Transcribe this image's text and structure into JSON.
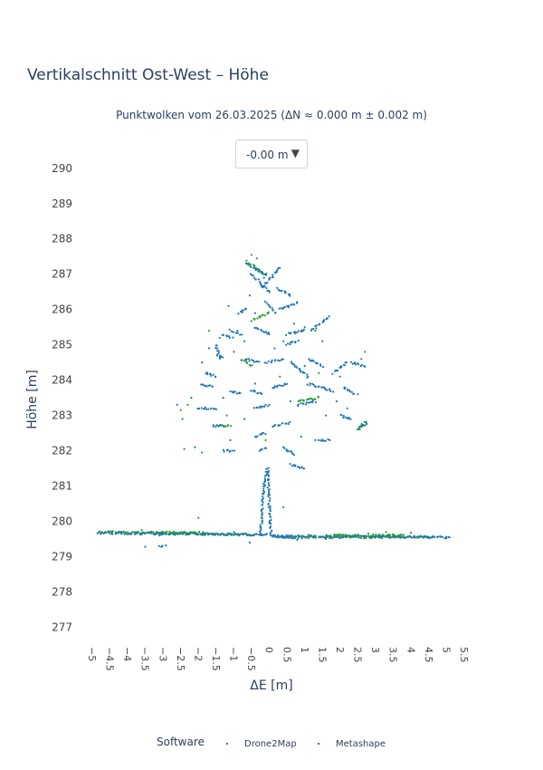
{
  "title": "Vertikalschnitt Ost-West – Höhe",
  "subtitle": "Punktwolken vom 26.03.2025 (ΔN ≈ 0.000 m ± 0.002 m)",
  "dropdown": {
    "selected": "-0.00 m",
    "arrow_icon": "triangle-down-icon"
  },
  "legend": {
    "title": "Software",
    "items": [
      {
        "label": "Drone2Map",
        "color": "#2ca02c"
      },
      {
        "label": "Metashape",
        "color": "#1f77b4"
      }
    ]
  },
  "chart_data": {
    "type": "scatter",
    "title": "Vertikalschnitt Ost-West – Höhe",
    "subtitle": "Punktwolken vom 26.03.2025 (ΔN ≈ 0.000 m ± 0.002 m)",
    "xlabel": "ΔE [m]",
    "ylabel": "Höhe [m]",
    "xlim": [
      -5,
      5.5
    ],
    "ylim": [
      276.6,
      290.2
    ],
    "x_ticks": [
      "-5",
      "-4.5",
      "-4",
      "-3.5",
      "-3",
      "-2.5",
      "-2",
      "-1.5",
      "-1",
      "-0.5",
      "0",
      "0.5",
      "1",
      "1.5",
      "2",
      "2.5",
      "3",
      "3.5",
      "4",
      "4.5",
      "5",
      "5.5"
    ],
    "y_ticks": [
      "277",
      "278",
      "279",
      "280",
      "281",
      "282",
      "283",
      "284",
      "285",
      "286",
      "287",
      "288",
      "289",
      "290"
    ],
    "grid": false,
    "legend_position": "bottom",
    "series": [
      {
        "name": "Drone2Map",
        "color": "#2ca02c",
        "segments": [
          [
            [
              -4.6,
              279.7
            ],
            [
              -0.2,
              279.62
            ]
          ],
          [
            [
              0.4,
              279.55
            ],
            [
              4.8,
              279.55
            ]
          ],
          [
            [
              -3.2,
              279.68
            ],
            [
              -1.6,
              279.68
            ]
          ],
          [
            [
              1.8,
              279.6
            ],
            [
              4.0,
              279.6
            ]
          ],
          [
            [
              -0.45,
              287.35
            ],
            [
              0.1,
              287.0
            ]
          ],
          [
            [
              -0.6,
              284.6
            ],
            [
              -0.3,
              284.4
            ]
          ],
          [
            [
              1.0,
              283.4
            ],
            [
              1.6,
              283.5
            ]
          ],
          [
            [
              -1.2,
              282.7
            ],
            [
              -0.9,
              282.7
            ]
          ],
          [
            [
              2.7,
              282.6
            ],
            [
              2.95,
              282.85
            ]
          ],
          [
            [
              -0.3,
              285.7
            ],
            [
              0.2,
              285.9
            ]
          ]
        ],
        "points": [
          [
            -0.3,
            287.55
          ],
          [
            -0.15,
            287.45
          ],
          [
            -2.1,
            283.3
          ],
          [
            -2.3,
            283.15
          ],
          [
            -2.2,
            282.05
          ],
          [
            -1.7,
            281.95
          ],
          [
            0.1,
            282.3
          ],
          [
            0.5,
            284.1
          ],
          [
            -1.5,
            285.4
          ],
          [
            -1.2,
            285.2
          ],
          [
            1.6,
            284.2
          ],
          [
            2.9,
            284.8
          ],
          [
            1.5,
            285.4
          ],
          [
            -1.0,
            283.0
          ],
          [
            -1.8,
            280.1
          ],
          [
            3.0,
            279.65
          ],
          [
            0.6,
            280.4
          ],
          [
            -3.4,
            279.75
          ],
          [
            4.2,
            279.68
          ],
          [
            -0.8,
            279.7
          ],
          [
            1.3,
            279.62
          ],
          [
            3.5,
            279.7
          ],
          [
            2.2,
            279.63
          ],
          [
            4.6,
            279.58
          ]
        ]
      },
      {
        "name": "Metashape",
        "color": "#1f77b4",
        "segments": [
          [
            [
              -4.65,
              279.67
            ],
            [
              0.0,
              279.62
            ]
          ],
          [
            [
              0.3,
              279.58
            ],
            [
              5.3,
              279.55
            ]
          ],
          [
            [
              0.3,
              279.58
            ],
            [
              1.0,
              279.5
            ]
          ],
          [
            [
              -0.05,
              279.62
            ],
            [
              0.05,
              281.0
            ]
          ],
          [
            [
              0.05,
              281.0
            ],
            [
              0.15,
              281.5
            ]
          ],
          [
            [
              0.15,
              281.5
            ],
            [
              0.25,
              279.62
            ]
          ],
          [
            [
              -0.05,
              279.62
            ],
            [
              0.2,
              279.62
            ]
          ],
          [
            [
              -2.9,
              279.3
            ],
            [
              -2.75,
              279.3
            ]
          ],
          [
            [
              -0.45,
              287.3
            ],
            [
              0.1,
              287.0
            ]
          ],
          [
            [
              -0.3,
              287.0
            ],
            [
              0.2,
              286.5
            ]
          ],
          [
            [
              0.0,
              286.6
            ],
            [
              0.5,
              287.2
            ]
          ],
          [
            [
              0.4,
              286.6
            ],
            [
              0.8,
              286.4
            ]
          ],
          [
            [
              0.5,
              286.0
            ],
            [
              1.0,
              286.2
            ]
          ],
          [
            [
              0.1,
              286.2
            ],
            [
              0.4,
              285.9
            ]
          ],
          [
            [
              -0.2,
              285.5
            ],
            [
              0.2,
              285.3
            ]
          ],
          [
            [
              -1.1,
              285.3
            ],
            [
              -0.85,
              285.2
            ]
          ],
          [
            [
              1.4,
              285.4
            ],
            [
              1.9,
              285.8
            ]
          ],
          [
            [
              0.7,
              285.3
            ],
            [
              1.2,
              285.4
            ]
          ],
          [
            [
              -1.3,
              285.0
            ],
            [
              -1.2,
              284.6
            ]
          ],
          [
            [
              -0.5,
              284.6
            ],
            [
              -0.1,
              284.5
            ]
          ],
          [
            [
              0.1,
              284.5
            ],
            [
              0.6,
              284.6
            ]
          ],
          [
            [
              0.8,
              284.5
            ],
            [
              1.3,
              284.1
            ]
          ],
          [
            [
              1.3,
              284.6
            ],
            [
              1.7,
              284.4
            ]
          ],
          [
            [
              2.0,
              284.2
            ],
            [
              2.4,
              284.5
            ]
          ],
          [
            [
              2.5,
              284.5
            ],
            [
              2.9,
              284.4
            ]
          ],
          [
            [
              -1.6,
              284.2
            ],
            [
              -1.3,
              284.1
            ]
          ],
          [
            [
              0.3,
              283.8
            ],
            [
              0.7,
              283.9
            ]
          ],
          [
            [
              1.3,
              283.9
            ],
            [
              2.0,
              283.7
            ]
          ],
          [
            [
              -0.3,
              283.7
            ],
            [
              0.0,
              283.6
            ]
          ],
          [
            [
              -1.8,
              283.2
            ],
            [
              -1.3,
              283.2
            ]
          ],
          [
            [
              -0.2,
              283.2
            ],
            [
              0.2,
              283.3
            ]
          ],
          [
            [
              1.0,
              283.3
            ],
            [
              1.5,
              283.4
            ]
          ],
          [
            [
              2.2,
              283.0
            ],
            [
              2.5,
              282.9
            ]
          ],
          [
            [
              2.75,
              282.6
            ],
            [
              2.95,
              282.8
            ]
          ],
          [
            [
              -1.4,
              282.7
            ],
            [
              -1.1,
              282.7
            ]
          ],
          [
            [
              0.3,
              282.7
            ],
            [
              0.8,
              282.8
            ]
          ],
          [
            [
              -0.2,
              282.4
            ],
            [
              0.1,
              282.5
            ]
          ],
          [
            [
              -1.1,
              282.0
            ],
            [
              -0.8,
              282.0
            ]
          ],
          [
            [
              0.6,
              282.1
            ],
            [
              0.9,
              281.9
            ]
          ],
          [
            [
              0.8,
              281.6
            ],
            [
              1.2,
              281.5
            ]
          ],
          [
            [
              -0.1,
              282.0
            ],
            [
              0.1,
              282.1
            ]
          ],
          [
            [
              1.6,
              282.3
            ],
            [
              1.9,
              282.3
            ]
          ],
          [
            [
              -1.7,
              283.9
            ],
            [
              -1.4,
              283.8
            ]
          ],
          [
            [
              -0.9,
              283.7
            ],
            [
              -0.6,
              283.6
            ]
          ],
          [
            [
              2.3,
              283.8
            ],
            [
              2.6,
              283.6
            ]
          ],
          [
            [
              -0.7,
              285.9
            ],
            [
              -0.45,
              286.0
            ]
          ],
          [
            [
              -0.9,
              285.4
            ],
            [
              -0.6,
              285.3
            ]
          ],
          [
            [
              -1.25,
              284.7
            ],
            [
              -1.1,
              284.65
            ]
          ],
          [
            [
              0.7,
              285.0
            ],
            [
              1.0,
              285.1
            ]
          ]
        ],
        "points": [
          [
            -2.0,
            283.5
          ],
          [
            -2.25,
            282.9
          ],
          [
            -1.9,
            282.1
          ],
          [
            -1.7,
            284.5
          ],
          [
            -1.5,
            284.9
          ],
          [
            -0.95,
            286.1
          ],
          [
            -0.7,
            285.4
          ],
          [
            -0.5,
            285.1
          ],
          [
            -0.35,
            286.4
          ],
          [
            -0.2,
            285.9
          ],
          [
            0.05,
            286.9
          ],
          [
            0.35,
            284.9
          ],
          [
            0.6,
            285.1
          ],
          [
            0.9,
            285.6
          ],
          [
            1.2,
            285.5
          ],
          [
            1.7,
            285.1
          ],
          [
            2.1,
            283.4
          ],
          [
            2.4,
            283.2
          ],
          [
            1.8,
            283.0
          ],
          [
            1.5,
            282.3
          ],
          [
            1.1,
            282.4
          ],
          [
            -0.5,
            282.9
          ],
          [
            -0.9,
            282.3
          ],
          [
            -2.4,
            283.3
          ],
          [
            2.7,
            283.6
          ],
          [
            2.2,
            284.1
          ],
          [
            2.8,
            284.6
          ],
          [
            -0.8,
            284.8
          ],
          [
            -0.2,
            283.9
          ],
          [
            0.8,
            283.4
          ],
          [
            -1.1,
            283.5
          ],
          [
            1.2,
            284.4
          ],
          [
            -2.9,
            279.6
          ],
          [
            3.4,
            279.58
          ],
          [
            4.3,
            279.56
          ],
          [
            -4.0,
            279.7
          ],
          [
            -3.3,
            279.28
          ],
          [
            1.8,
            279.5
          ],
          [
            -0.35,
            279.4
          ]
        ]
      }
    ]
  }
}
